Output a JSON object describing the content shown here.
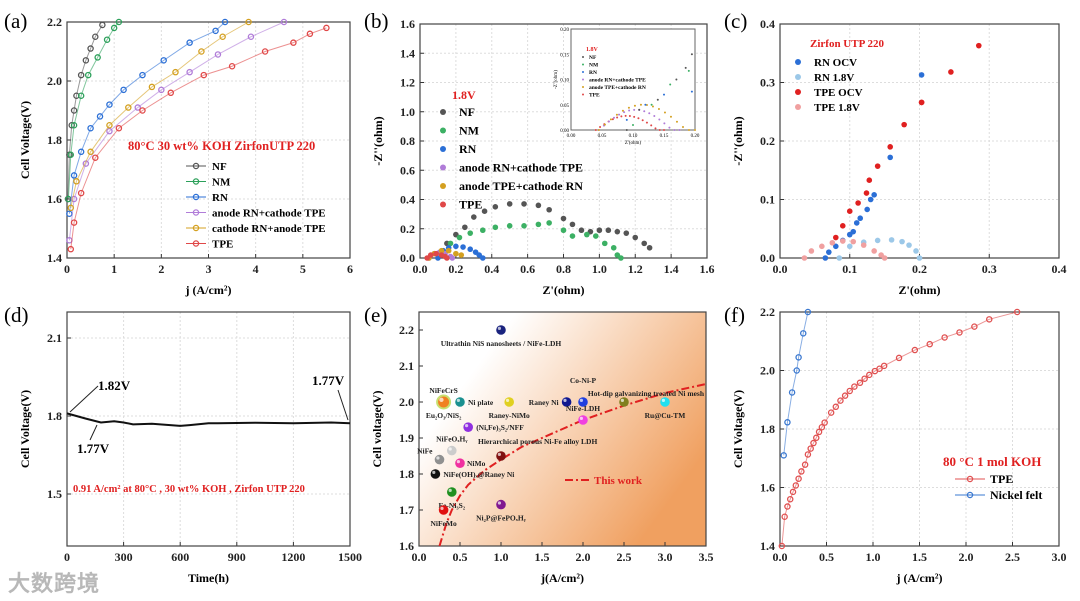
{
  "watermark": "大数跨境",
  "chart_data": [
    {
      "panel": "(a)",
      "type": "line",
      "marker": "open",
      "xlabel": "j (A/cm²)",
      "ylabel": "Cell Voltage(V)",
      "xlim": [
        0,
        6
      ],
      "ylim": [
        1.4,
        2.2
      ],
      "xticks": [
        "0",
        "1",
        "2",
        "3",
        "4",
        "5",
        "6"
      ],
      "yticks": [
        "1.4",
        "1.6",
        "1.8",
        "2.0",
        "2.2"
      ],
      "grid": true,
      "annotations": [
        "80°C  30 wt%  KOH  ZirfonUTP 220"
      ],
      "series": [
        {
          "name": "NF",
          "color": "#555555",
          "x": [
            0.02,
            0.05,
            0.1,
            0.15,
            0.2,
            0.3,
            0.4,
            0.5,
            0.6,
            0.75
          ],
          "y": [
            1.6,
            1.75,
            1.85,
            1.9,
            1.95,
            2.02,
            2.07,
            2.11,
            2.15,
            2.19
          ]
        },
        {
          "name": "NM",
          "color": "#2ca05a",
          "x": [
            0.03,
            0.08,
            0.15,
            0.3,
            0.45,
            0.65,
            0.85,
            1.0,
            1.1
          ],
          "y": [
            1.6,
            1.75,
            1.85,
            1.95,
            2.02,
            2.08,
            2.14,
            2.18,
            2.2
          ]
        },
        {
          "name": "RN",
          "color": "#2b6fd6",
          "x": [
            0.05,
            0.15,
            0.3,
            0.5,
            0.7,
            0.9,
            1.2,
            1.6,
            2.05,
            2.6,
            3.15,
            3.35
          ],
          "y": [
            1.55,
            1.68,
            1.76,
            1.84,
            1.88,
            1.92,
            1.97,
            2.02,
            2.07,
            2.13,
            2.17,
            2.2
          ]
        },
        {
          "name": "anode RN+cathode TPE",
          "color": "#b07cd8",
          "x": [
            0.05,
            0.15,
            0.4,
            0.9,
            1.5,
            2.0,
            2.6,
            3.2,
            3.9,
            4.6
          ],
          "y": [
            1.46,
            1.6,
            1.72,
            1.83,
            1.91,
            1.97,
            2.03,
            2.09,
            2.15,
            2.2
          ]
        },
        {
          "name": "cathode RN+anode TPE",
          "color": "#d4a020",
          "x": [
            0.08,
            0.2,
            0.5,
            0.9,
            1.3,
            1.8,
            2.3,
            2.85,
            3.3,
            3.85
          ],
          "y": [
            1.57,
            1.66,
            1.76,
            1.85,
            1.91,
            1.98,
            2.03,
            2.1,
            2.15,
            2.2
          ]
        },
        {
          "name": "TPE",
          "color": "#e04848",
          "x": [
            0.08,
            0.15,
            0.3,
            0.6,
            1.1,
            1.6,
            2.2,
            2.9,
            3.5,
            4.2,
            4.8,
            5.15,
            5.5
          ],
          "y": [
            1.43,
            1.52,
            1.62,
            1.74,
            1.84,
            1.9,
            1.96,
            2.02,
            2.05,
            2.1,
            2.13,
            2.16,
            2.18
          ]
        }
      ]
    },
    {
      "panel": "(b)",
      "type": "scatter",
      "marker": "filled",
      "xlabel": "Z'(ohm)",
      "ylabel": "-Z''(ohm)",
      "xlim": [
        0,
        1.6
      ],
      "ylim": [
        0,
        1.6
      ],
      "xticks": [
        "0.0",
        "0.2",
        "0.4",
        "0.6",
        "0.8",
        "1.0",
        "1.2",
        "1.4",
        "1.6"
      ],
      "yticks": [
        "0.0",
        "0.2",
        "0.4",
        "0.6",
        "0.8",
        "1.0",
        "1.2",
        "1.4",
        "1.6"
      ],
      "grid": true,
      "legend_title": "1.8V",
      "series": [
        {
          "name": "NF",
          "color": "#555555",
          "x": [
            0.15,
            0.2,
            0.25,
            0.3,
            0.36,
            0.42,
            0.5,
            0.58,
            0.66,
            0.72,
            0.8,
            0.85,
            0.9,
            0.95,
            1.0,
            1.05,
            1.1,
            1.15,
            1.2,
            1.25,
            1.28
          ],
          "y": [
            0.1,
            0.16,
            0.21,
            0.28,
            0.32,
            0.35,
            0.37,
            0.37,
            0.36,
            0.33,
            0.27,
            0.23,
            0.19,
            0.18,
            0.19,
            0.19,
            0.18,
            0.17,
            0.14,
            0.1,
            0.07
          ]
        },
        {
          "name": "NM",
          "color": "#3cb064",
          "x": [
            0.17,
            0.22,
            0.28,
            0.35,
            0.42,
            0.5,
            0.58,
            0.66,
            0.72,
            0.8,
            0.85,
            0.93,
            0.98,
            1.03,
            1.08,
            1.1,
            1.12
          ],
          "y": [
            0.1,
            0.14,
            0.17,
            0.19,
            0.21,
            0.22,
            0.22,
            0.23,
            0.24,
            0.19,
            0.15,
            0.16,
            0.15,
            0.1,
            0.07,
            0.02,
            0.0
          ]
        },
        {
          "name": "RN",
          "color": "#2b6fd6",
          "x": [
            0.1,
            0.13,
            0.16,
            0.2,
            0.24,
            0.28,
            0.31,
            0.33,
            0.35
          ],
          "y": [
            0.0,
            0.05,
            0.07,
            0.08,
            0.075,
            0.06,
            0.04,
            0.02,
            0.0
          ]
        },
        {
          "name": "anode RN+cathode TPE",
          "color": "#b07cd8",
          "x": [
            0.05,
            0.08,
            0.11,
            0.14,
            0.17,
            0.18
          ],
          "y": [
            0.0,
            0.03,
            0.04,
            0.03,
            0.01,
            0.0
          ]
        },
        {
          "name": "anode TPE+cathode RN",
          "color": "#d4a020",
          "x": [
            0.05,
            0.08,
            0.12,
            0.16,
            0.2,
            0.23
          ],
          "y": [
            0.0,
            0.03,
            0.05,
            0.05,
            0.03,
            0.02
          ]
        },
        {
          "name": "TPE",
          "color": "#e04848",
          "x": [
            0.04,
            0.06,
            0.09,
            0.12,
            0.14,
            0.15
          ],
          "y": [
            0.0,
            0.02,
            0.03,
            0.02,
            0.01,
            0.0
          ]
        }
      ],
      "inset": {
        "xlabel": "Z'(ohm)",
        "ylabel": "-Z''(ohm)",
        "xlim": [
          0,
          0.2
        ],
        "ylim": [
          0,
          0.2
        ],
        "xticks": [
          "0.00",
          "0.05",
          "0.10",
          "0.15",
          "0.20"
        ],
        "yticks": [
          "0.00",
          "0.05",
          "0.10",
          "0.15",
          "0.20"
        ],
        "legend_title": "1.8V",
        "legend": [
          "NF",
          "NM",
          "RN",
          "anode RN+cathode TPE",
          "anode TPE+cathode RN",
          "TPE"
        ]
      }
    },
    {
      "panel": "(c)",
      "type": "scatter",
      "marker": "filled",
      "xlabel": "Z'(ohm)",
      "ylabel": "-Z''(ohm)",
      "xlim": [
        0,
        0.4
      ],
      "ylim": [
        0,
        0.4
      ],
      "xticks": [
        "0.0",
        "0.1",
        "0.2",
        "0.3",
        "0.4"
      ],
      "yticks": [
        "0.0",
        "0.1",
        "0.2",
        "0.3",
        "0.4"
      ],
      "grid": true,
      "legend_title": "Zirfon UTP 220",
      "series": [
        {
          "name": "RN OCV",
          "color": "#2b6fd6",
          "x": [
            0.065,
            0.07,
            0.08,
            0.09,
            0.1,
            0.105,
            0.11,
            0.115,
            0.125,
            0.13,
            0.135,
            0.158,
            0.203
          ],
          "y": [
            0.0,
            0.01,
            0.02,
            0.03,
            0.04,
            0.045,
            0.06,
            0.068,
            0.083,
            0.1,
            0.108,
            0.172,
            0.313
          ]
        },
        {
          "name": "RN 1.8V",
          "color": "#9cc8e8",
          "x": [
            0.085,
            0.1,
            0.12,
            0.14,
            0.16,
            0.175,
            0.185,
            0.195,
            0.2
          ],
          "y": [
            0.0,
            0.02,
            0.027,
            0.03,
            0.031,
            0.028,
            0.022,
            0.012,
            0.0
          ]
        },
        {
          "name": "TPE OCV",
          "color": "#e02020",
          "x": [
            0.08,
            0.09,
            0.1,
            0.112,
            0.124,
            0.128,
            0.14,
            0.158,
            0.178,
            0.203,
            0.203,
            0.245,
            0.285
          ],
          "y": [
            0.035,
            0.055,
            0.08,
            0.094,
            0.111,
            0.133,
            0.157,
            0.19,
            0.228,
            0.266,
            0.266,
            0.318,
            0.363
          ]
        },
        {
          "name": "TPE 1.8V",
          "color": "#f0a0a0",
          "x": [
            0.035,
            0.045,
            0.06,
            0.075,
            0.09,
            0.105,
            0.12,
            0.135,
            0.145,
            0.15
          ],
          "y": [
            0.0,
            0.012,
            0.02,
            0.026,
            0.029,
            0.028,
            0.022,
            0.012,
            0.005,
            0.0
          ]
        }
      ]
    },
    {
      "panel": "(d)",
      "type": "line",
      "marker": "none",
      "xlabel": "Time(h)",
      "ylabel": "Cell Voltage(V)",
      "xlim": [
        0,
        1500
      ],
      "ylim": [
        1.3,
        2.2
      ],
      "xticks": [
        "0",
        "300",
        "600",
        "900",
        "1200",
        "1500"
      ],
      "yticks": [
        "1.5",
        "1.8",
        "2.1"
      ],
      "grid": true,
      "annotations": [
        "1.82V",
        "1.77V",
        "1.77V",
        "0.91 A/cm² at 80°C , 30 wt%  KOH ,  Zirfon UTP 220"
      ],
      "series": [
        {
          "name": "Cell voltage",
          "color": "#111111",
          "x": [
            0,
            50,
            100,
            180,
            250,
            300,
            350,
            450,
            600,
            650,
            750,
            800,
            1000,
            1200,
            1400,
            1500
          ],
          "y": [
            1.81,
            1.8,
            1.79,
            1.775,
            1.78,
            1.775,
            1.768,
            1.77,
            1.762,
            1.765,
            1.772,
            1.772,
            1.774,
            1.772,
            1.775,
            1.772
          ]
        }
      ]
    },
    {
      "panel": "(e)",
      "type": "scatter",
      "marker": "sphere",
      "xlabel": "j(A/cm²)",
      "ylabel": "Cell voltage(V)",
      "xlim": [
        0,
        3.5
      ],
      "ylim": [
        1.6,
        2.25
      ],
      "xticks": [
        "0.0",
        "0.5",
        "1.0",
        "1.5",
        "2.0",
        "2.5",
        "3.0",
        "3.5"
      ],
      "yticks": [
        "1.6",
        "1.7",
        "1.8",
        "1.9",
        "2.0",
        "2.1",
        "2.2"
      ],
      "grid": false,
      "points": [
        {
          "label": "Ultrathin NiS nanosheets / NiFe-LDH",
          "x": 1.0,
          "y": 2.2,
          "color": "#1a237e",
          "side": "below"
        },
        {
          "label": "NiFeCrS",
          "x": 0.3,
          "y": 2.0,
          "color": "#f08020",
          "side": "above"
        },
        {
          "label": "Eu₂O₃/NiS₂",
          "x": 0.3,
          "y": 2.0,
          "color": "#f08020",
          "side": "below"
        },
        {
          "label": "Ni plate",
          "x": 0.5,
          "y": 2.0,
          "color": "#1a9090",
          "side": "right"
        },
        {
          "label": "Raney-NiMo",
          "x": 1.1,
          "y": 2.0,
          "color": "#e0d020",
          "side": "below"
        },
        {
          "label": "Raney Ni",
          "x": 1.8,
          "y": 2.0,
          "color": "#101890",
          "side": "left"
        },
        {
          "label": "Co-Ni-P",
          "x": 2.0,
          "y": 2.0,
          "color": "#2040e0",
          "side": "above"
        },
        {
          "label": "NiFe-LDH",
          "x": 2.0,
          "y": 1.95,
          "color": "#f040e0",
          "side": "above"
        },
        {
          "label": "Hot-dip galvanizing treated Ni mesh",
          "x": 2.5,
          "y": 2.0,
          "color": "#808020",
          "side": "above"
        },
        {
          "label": "Ru@Cu-TM",
          "x": 3.0,
          "y": 2.0,
          "color": "#20e0f0",
          "side": "below"
        },
        {
          "label": "(Ni,Fe)₃S₂/NFF",
          "x": 0.6,
          "y": 1.93,
          "color": "#9030e0",
          "side": "right"
        },
        {
          "label": "NiFeOₓHᵧ",
          "x": 0.4,
          "y": 1.865,
          "color": "#cccccc",
          "side": "above"
        },
        {
          "label": "NiFe",
          "x": 0.25,
          "y": 1.84,
          "color": "#909090",
          "side": "above"
        },
        {
          "label": "NiMo",
          "x": 0.5,
          "y": 1.83,
          "color": "#f030a0",
          "side": "aboveright"
        },
        {
          "label": "Hierarchical porous Ni-Fe alloy LDH",
          "x": 1.0,
          "y": 1.85,
          "color": "#801010",
          "side": "above"
        },
        {
          "label": "NiFe(OH)ₓ@Raney Ni",
          "x": 0.2,
          "y": 1.8,
          "color": "#111111",
          "side": "right"
        },
        {
          "label": "Fe-Ni₃S₂",
          "x": 0.4,
          "y": 1.75,
          "color": "#209020",
          "side": "below"
        },
        {
          "label": "NiFeMo",
          "x": 0.3,
          "y": 1.7,
          "color": "#e01010",
          "side": "below"
        },
        {
          "label": "Ni₂P@FePOₓHᵧ",
          "x": 1.0,
          "y": 1.715,
          "color": "#801890",
          "side": "below"
        }
      ],
      "series": [
        {
          "name": "This work",
          "color": "#e02020",
          "x": [
            0.25,
            0.33,
            0.4,
            0.5,
            0.6,
            0.8,
            1.0,
            1.25,
            1.5,
            1.75,
            2.0,
            2.5,
            3.0,
            3.5
          ],
          "y": [
            1.6,
            1.66,
            1.7,
            1.74,
            1.77,
            1.81,
            1.84,
            1.875,
            1.9,
            1.925,
            1.95,
            1.99,
            2.025,
            2.05
          ]
        }
      ]
    },
    {
      "panel": "(f)",
      "type": "line",
      "marker": "open",
      "xlabel": "j (A/cm²)",
      "ylabel": "Cell Voltage(V)",
      "xlim": [
        0,
        3.0
      ],
      "ylim": [
        1.4,
        2.2
      ],
      "xticks": [
        "0.0",
        "0.5",
        "1.0",
        "1.5",
        "2.0",
        "2.5",
        "3.0"
      ],
      "yticks": [
        "1.4",
        "1.6",
        "1.8",
        "2.0",
        "2.2"
      ],
      "grid": true,
      "legend_title": "80 °C  1 mol KOH",
      "series": [
        {
          "name": "TPE",
          "color": "#e05050",
          "x": [
            0.02,
            0.05,
            0.08,
            0.11,
            0.14,
            0.17,
            0.2,
            0.23,
            0.27,
            0.3,
            0.33,
            0.36,
            0.39,
            0.42,
            0.45,
            0.48,
            0.55,
            0.6,
            0.65,
            0.7,
            0.75,
            0.8,
            0.86,
            0.91,
            0.96,
            1.02,
            1.07,
            1.12,
            1.28,
            1.45,
            1.61,
            1.77,
            1.93,
            2.09,
            2.25,
            2.55
          ],
          "y": [
            1.4,
            1.5,
            1.535,
            1.56,
            1.585,
            1.607,
            1.63,
            1.655,
            1.678,
            1.713,
            1.733,
            1.752,
            1.77,
            1.79,
            1.806,
            1.822,
            1.856,
            1.876,
            1.897,
            1.914,
            1.93,
            1.945,
            1.958,
            1.972,
            1.985,
            1.998,
            2.006,
            2.016,
            2.043,
            2.07,
            2.09,
            2.113,
            2.13,
            2.15,
            2.175,
            2.2
          ]
        },
        {
          "name": "Nickel felt",
          "color": "#3a78d0",
          "x": [
            0.04,
            0.08,
            0.13,
            0.18,
            0.2,
            0.25,
            0.3
          ],
          "y": [
            1.71,
            1.823,
            1.925,
            2.0,
            2.045,
            2.127,
            2.2
          ]
        }
      ]
    }
  ]
}
